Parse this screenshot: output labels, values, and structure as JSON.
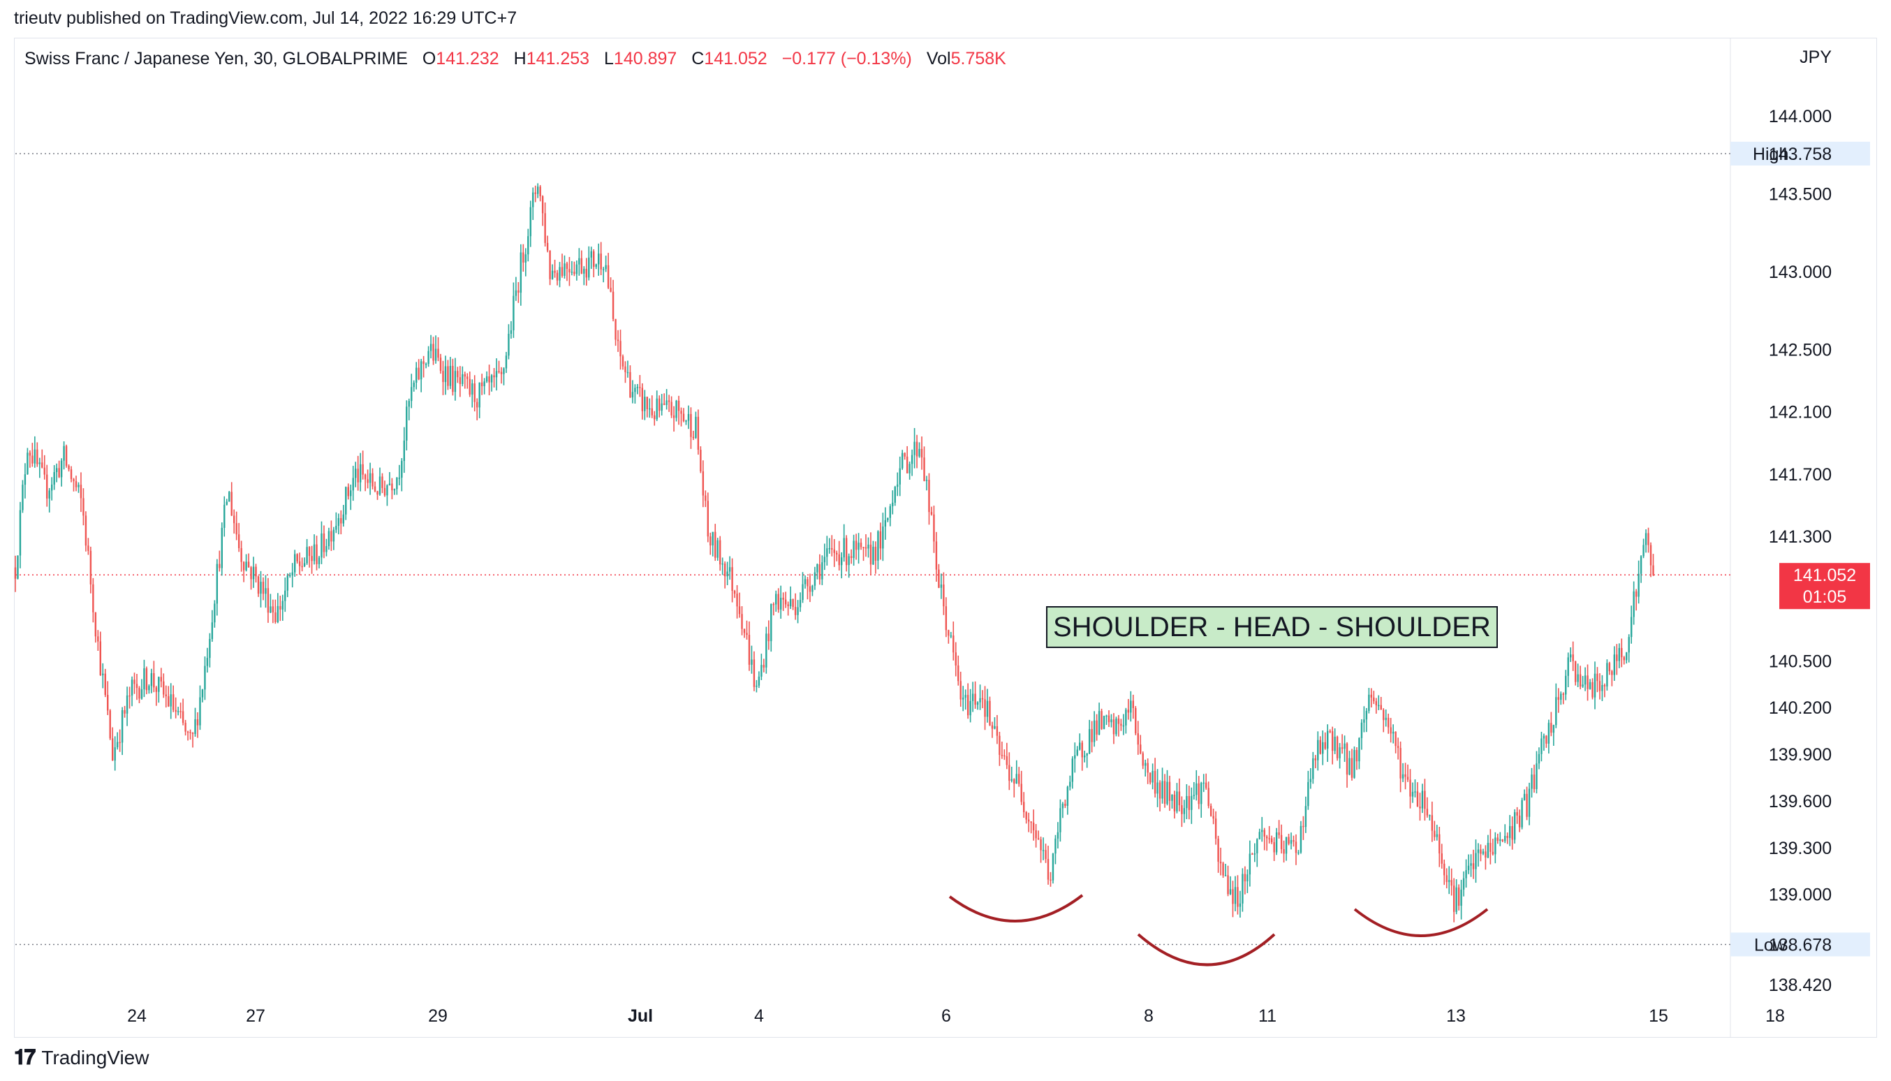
{
  "header": {
    "published_by": "trieutv published on TradingView.com, Jul 14, 2022 16:29 UTC+7"
  },
  "legend": {
    "symbol": "Swiss Franc / Japanese Yen, 30, GLOBALPRIME",
    "o_label": "O",
    "o_value": "141.232",
    "h_label": "H",
    "h_value": "141.253",
    "l_label": "L",
    "l_value": "140.897",
    "c_label": "C",
    "c_value": "141.052",
    "change": "−0.177 (−0.13%)",
    "vol_label": "Vol",
    "vol_value": "5.758K"
  },
  "footer": {
    "brand": "TradingView"
  },
  "colors": {
    "up": "#26a69a",
    "down": "#ef5350",
    "last_price": "#f23645",
    "annotation_bg": "#c8ebc8",
    "arc": "#a31f24"
  },
  "chart_data": {
    "type": "candlestick",
    "currency": "JPY",
    "y_ticks": [
      144.0,
      143.5,
      143.0,
      142.5,
      142.1,
      141.7,
      141.3,
      140.5,
      140.2,
      139.9,
      139.6,
      139.3,
      139.0,
      138.42
    ],
    "y_tick_labels": [
      "144.000",
      "143.500",
      "143.000",
      "142.500",
      "142.100",
      "141.700",
      "141.300",
      "140.500",
      "140.200",
      "139.900",
      "139.600",
      "139.300",
      "139.000",
      "138.420"
    ],
    "x_ticks": [
      {
        "label": "24",
        "bold": false
      },
      {
        "label": "27",
        "bold": false
      },
      {
        "label": "29",
        "bold": false
      },
      {
        "label": "Jul",
        "bold": true
      },
      {
        "label": "4",
        "bold": false
      },
      {
        "label": "6",
        "bold": false
      },
      {
        "label": "8",
        "bold": false
      },
      {
        "label": "11",
        "bold": false
      },
      {
        "label": "13",
        "bold": false
      },
      {
        "label": "15",
        "bold": false
      },
      {
        "label": "18",
        "bold": false
      }
    ],
    "high": {
      "label": "High",
      "value": 143.758,
      "text": "143.758"
    },
    "low": {
      "label": "Low",
      "value": 138.678,
      "text": "138.678"
    },
    "last": {
      "value": 141.052,
      "text": "141.052",
      "countdown": "01:05"
    },
    "annotation": "SHOULDER - HEAD - SHOULDER",
    "path_points": [
      [
        0,
        141.1
      ],
      [
        10,
        141.9
      ],
      [
        25,
        141.6
      ],
      [
        40,
        141.8
      ],
      [
        55,
        141.5
      ],
      [
        68,
        140.6
      ],
      [
        80,
        139.9
      ],
      [
        95,
        140.3
      ],
      [
        110,
        140.4
      ],
      [
        130,
        140.2
      ],
      [
        145,
        139.95
      ],
      [
        155,
        140.4
      ],
      [
        175,
        141.6
      ],
      [
        185,
        141.2
      ],
      [
        200,
        141.0
      ],
      [
        215,
        140.8
      ],
      [
        230,
        141.1
      ],
      [
        250,
        141.2
      ],
      [
        270,
        141.5
      ],
      [
        280,
        141.7
      ],
      [
        300,
        141.6
      ],
      [
        315,
        141.7
      ],
      [
        325,
        142.2
      ],
      [
        340,
        142.5
      ],
      [
        360,
        142.3
      ],
      [
        380,
        142.2
      ],
      [
        400,
        142.3
      ],
      [
        415,
        143.0
      ],
      [
        430,
        143.6
      ],
      [
        440,
        143.0
      ],
      [
        455,
        143.05
      ],
      [
        470,
        143.05
      ],
      [
        485,
        143.1
      ],
      [
        495,
        142.5
      ],
      [
        510,
        142.2
      ],
      [
        525,
        142.1
      ],
      [
        545,
        142.1
      ],
      [
        560,
        142.0
      ],
      [
        570,
        141.3
      ],
      [
        585,
        141.1
      ],
      [
        595,
        140.9
      ],
      [
        610,
        140.3
      ],
      [
        625,
        140.9
      ],
      [
        640,
        140.85
      ],
      [
        660,
        141.1
      ],
      [
        675,
        141.2
      ],
      [
        690,
        141.2
      ],
      [
        700,
        141.15
      ],
      [
        715,
        141.3
      ],
      [
        725,
        141.7
      ],
      [
        745,
        141.9
      ],
      [
        760,
        141.0
      ],
      [
        770,
        140.6
      ],
      [
        780,
        140.2
      ],
      [
        795,
        140.3
      ],
      [
        810,
        139.9
      ],
      [
        825,
        139.7
      ],
      [
        840,
        139.4
      ],
      [
        852,
        139.1
      ],
      [
        862,
        139.6
      ],
      [
        875,
        139.9
      ],
      [
        890,
        140.1
      ],
      [
        905,
        140.05
      ],
      [
        918,
        140.2
      ],
      [
        930,
        139.8
      ],
      [
        945,
        139.65
      ],
      [
        960,
        139.6
      ],
      [
        980,
        139.7
      ],
      [
        990,
        139.2
      ],
      [
        1005,
        138.95
      ],
      [
        1015,
        139.2
      ],
      [
        1025,
        139.4
      ],
      [
        1040,
        139.3
      ],
      [
        1055,
        139.3
      ],
      [
        1070,
        139.9
      ],
      [
        1085,
        140.0
      ],
      [
        1100,
        139.8
      ],
      [
        1115,
        140.3
      ],
      [
        1130,
        140.1
      ],
      [
        1145,
        139.7
      ],
      [
        1160,
        139.6
      ],
      [
        1172,
        139.3
      ],
      [
        1185,
        138.95
      ],
      [
        1200,
        139.2
      ],
      [
        1215,
        139.3
      ],
      [
        1230,
        139.4
      ],
      [
        1245,
        139.6
      ],
      [
        1255,
        139.9
      ],
      [
        1265,
        140.1
      ],
      [
        1280,
        140.5
      ],
      [
        1295,
        140.3
      ],
      [
        1310,
        140.4
      ],
      [
        1325,
        140.6
      ],
      [
        1335,
        141.0
      ],
      [
        1342,
        141.3
      ],
      [
        1348,
        141.05
      ]
    ]
  }
}
